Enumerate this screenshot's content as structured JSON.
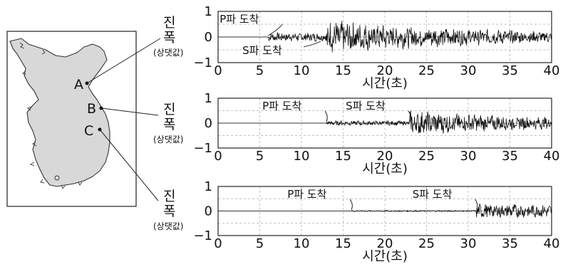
{
  "map": {
    "points": [
      {
        "label": "A"
      },
      {
        "label": "B"
      },
      {
        "label": "C"
      }
    ]
  },
  "side_labels": {
    "line1": "진",
    "line2": "폭",
    "line3": "(상댓값)"
  },
  "chart_data": [
    {
      "type": "line",
      "station": "A",
      "xlabel": "시간(초)",
      "ylabel": "진폭(상댓값)",
      "xlim": [
        0,
        40
      ],
      "ylim": [
        -1,
        1
      ],
      "x_ticks": [
        "0",
        "5",
        "10",
        "15",
        "20",
        "25",
        "30",
        "35",
        "40"
      ],
      "y_ticks": [
        "1",
        "0",
        "−1"
      ],
      "grid": true,
      "p_arrival": 6,
      "s_arrival": 13,
      "annotations": [
        {
          "text": "P파 도착",
          "x": 6
        },
        {
          "text": "S파 도착",
          "x": 13
        }
      ]
    },
    {
      "type": "line",
      "station": "B",
      "xlabel": "시간(초)",
      "ylabel": "진폭(상댓값)",
      "xlim": [
        0,
        40
      ],
      "ylim": [
        -1,
        1
      ],
      "x_ticks": [
        "0",
        "5",
        "10",
        "15",
        "20",
        "25",
        "30",
        "35",
        "40"
      ],
      "y_ticks": [
        "1",
        "0",
        "−1"
      ],
      "grid": true,
      "p_arrival": 13,
      "s_arrival": 23,
      "annotations": [
        {
          "text": "P파 도착",
          "x": 13
        },
        {
          "text": "S파 도착",
          "x": 23
        }
      ]
    },
    {
      "type": "line",
      "station": "C",
      "xlabel": "시간(초)",
      "ylabel": "진폭(상댓값)",
      "xlim": [
        0,
        40
      ],
      "ylim": [
        -1,
        1
      ],
      "x_ticks": [
        "0",
        "5",
        "10",
        "15",
        "20",
        "25",
        "30",
        "35",
        "40"
      ],
      "y_ticks": [
        "1",
        "0",
        "−1"
      ],
      "grid": true,
      "p_arrival": 16,
      "s_arrival": 31,
      "annotations": [
        {
          "text": "P파 도착",
          "x": 16
        },
        {
          "text": "S파 도착",
          "x": 31
        }
      ]
    }
  ]
}
